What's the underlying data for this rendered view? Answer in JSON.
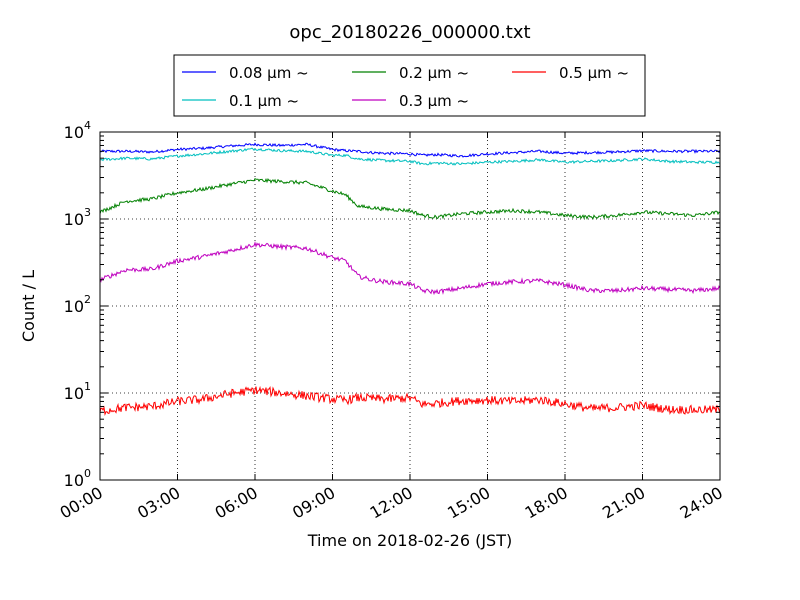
{
  "chart_data": {
    "type": "line",
    "title": "opc_20180226_000000.txt",
    "xlabel": "Time on 2018-02-26 (JST)",
    "ylabel": "Count / L",
    "yscale": "log",
    "ylim": [
      1,
      10000
    ],
    "xlim": [
      "2018-02-26 00:00",
      "2018-02-27 00:00"
    ],
    "grid": true,
    "legend_position": "top-center",
    "xticks": [
      "00:00",
      "03:00",
      "06:00",
      "09:00",
      "12:00",
      "15:00",
      "18:00",
      "21:00",
      "24:00"
    ],
    "yticks": [
      {
        "base": "10",
        "exp": "0"
      },
      {
        "base": "10",
        "exp": "1"
      },
      {
        "base": "10",
        "exp": "2"
      },
      {
        "base": "10",
        "exp": "3"
      },
      {
        "base": "10",
        "exp": "4"
      }
    ],
    "series": [
      {
        "name": "0.08 μm ~",
        "color": "#0000ff",
        "x": [
          "00:00",
          "01:00",
          "02:00",
          "03:00",
          "04:00",
          "05:00",
          "06:00",
          "07:00",
          "08:00",
          "09:00",
          "09:30",
          "10:00",
          "10:30",
          "11:00",
          "12:00",
          "12:30",
          "13:00",
          "14:00",
          "15:00",
          "16:00",
          "17:00",
          "18:00",
          "19:00",
          "20:00",
          "21:00",
          "22:00",
          "23:00",
          "24:00"
        ],
        "y": [
          6000,
          6000,
          5900,
          6300,
          6500,
          6900,
          7200,
          7000,
          7200,
          6300,
          6100,
          6000,
          5800,
          5700,
          5600,
          5400,
          5500,
          5300,
          5600,
          5800,
          6000,
          5700,
          5800,
          5900,
          6100,
          6000,
          6000,
          6000
        ]
      },
      {
        "name": "0.1 μm ~",
        "color": "#00bfbf",
        "x": [
          "00:00",
          "01:00",
          "02:00",
          "03:00",
          "04:00",
          "05:00",
          "06:00",
          "07:00",
          "08:00",
          "09:00",
          "09:30",
          "10:00",
          "10:30",
          "11:00",
          "12:00",
          "12:30",
          "13:00",
          "14:00",
          "15:00",
          "16:00",
          "17:00",
          "18:00",
          "19:00",
          "20:00",
          "21:00",
          "22:00",
          "23:00",
          "24:00"
        ],
        "y": [
          4800,
          5000,
          4900,
          5300,
          5600,
          6000,
          6400,
          6100,
          6000,
          5400,
          5400,
          4900,
          4800,
          4700,
          4600,
          4300,
          4400,
          4300,
          4500,
          4600,
          4800,
          4500,
          4600,
          4700,
          4900,
          4600,
          4500,
          4500
        ]
      },
      {
        "name": "0.2 μm ~",
        "color": "#008000",
        "x": [
          "00:00",
          "01:00",
          "02:00",
          "03:00",
          "04:00",
          "05:00",
          "06:00",
          "07:00",
          "08:00",
          "09:00",
          "09:30",
          "10:00",
          "10:30",
          "11:00",
          "12:00",
          "12:30",
          "13:00",
          "14:00",
          "15:00",
          "16:00",
          "17:00",
          "18:00",
          "19:00",
          "20:00",
          "21:00",
          "22:00",
          "23:00",
          "24:00"
        ],
        "y": [
          1200,
          1600,
          1700,
          2000,
          2200,
          2500,
          2800,
          2700,
          2600,
          2100,
          1900,
          1400,
          1350,
          1300,
          1250,
          1100,
          1050,
          1150,
          1200,
          1250,
          1200,
          1100,
          1050,
          1100,
          1200,
          1150,
          1100,
          1200
        ]
      },
      {
        "name": "0.3 μm ~",
        "color": "#bf00bf",
        "x": [
          "00:00",
          "01:00",
          "02:00",
          "03:00",
          "04:00",
          "05:00",
          "06:00",
          "07:00",
          "08:00",
          "09:00",
          "09:30",
          "10:00",
          "10:30",
          "11:00",
          "12:00",
          "12:30",
          "13:00",
          "14:00",
          "15:00",
          "16:00",
          "17:00",
          "18:00",
          "19:00",
          "20:00",
          "21:00",
          "22:00",
          "23:00",
          "24:00"
        ],
        "y": [
          200,
          260,
          265,
          330,
          370,
          430,
          510,
          480,
          460,
          360,
          330,
          220,
          200,
          190,
          180,
          150,
          145,
          160,
          180,
          190,
          195,
          175,
          150,
          150,
          160,
          155,
          150,
          160
        ]
      },
      {
        "name": "0.5 μm ~",
        "color": "#ff0000",
        "x": [
          "00:00",
          "01:00",
          "02:00",
          "03:00",
          "04:00",
          "05:00",
          "06:00",
          "07:00",
          "08:00",
          "09:00",
          "09:30",
          "10:00",
          "10:30",
          "11:00",
          "12:00",
          "12:30",
          "13:00",
          "14:00",
          "15:00",
          "16:00",
          "17:00",
          "18:00",
          "19:00",
          "20:00",
          "21:00",
          "22:00",
          "23:00",
          "24:00"
        ],
        "y": [
          6.2,
          6.8,
          7.0,
          8.0,
          8.5,
          9.8,
          10.8,
          10.0,
          9.3,
          8.5,
          8.3,
          8.8,
          8.7,
          8.5,
          8.8,
          7.4,
          7.6,
          8.2,
          8.3,
          8.0,
          8.4,
          7.5,
          6.6,
          6.8,
          7.2,
          6.5,
          6.4,
          6.4
        ]
      }
    ]
  }
}
